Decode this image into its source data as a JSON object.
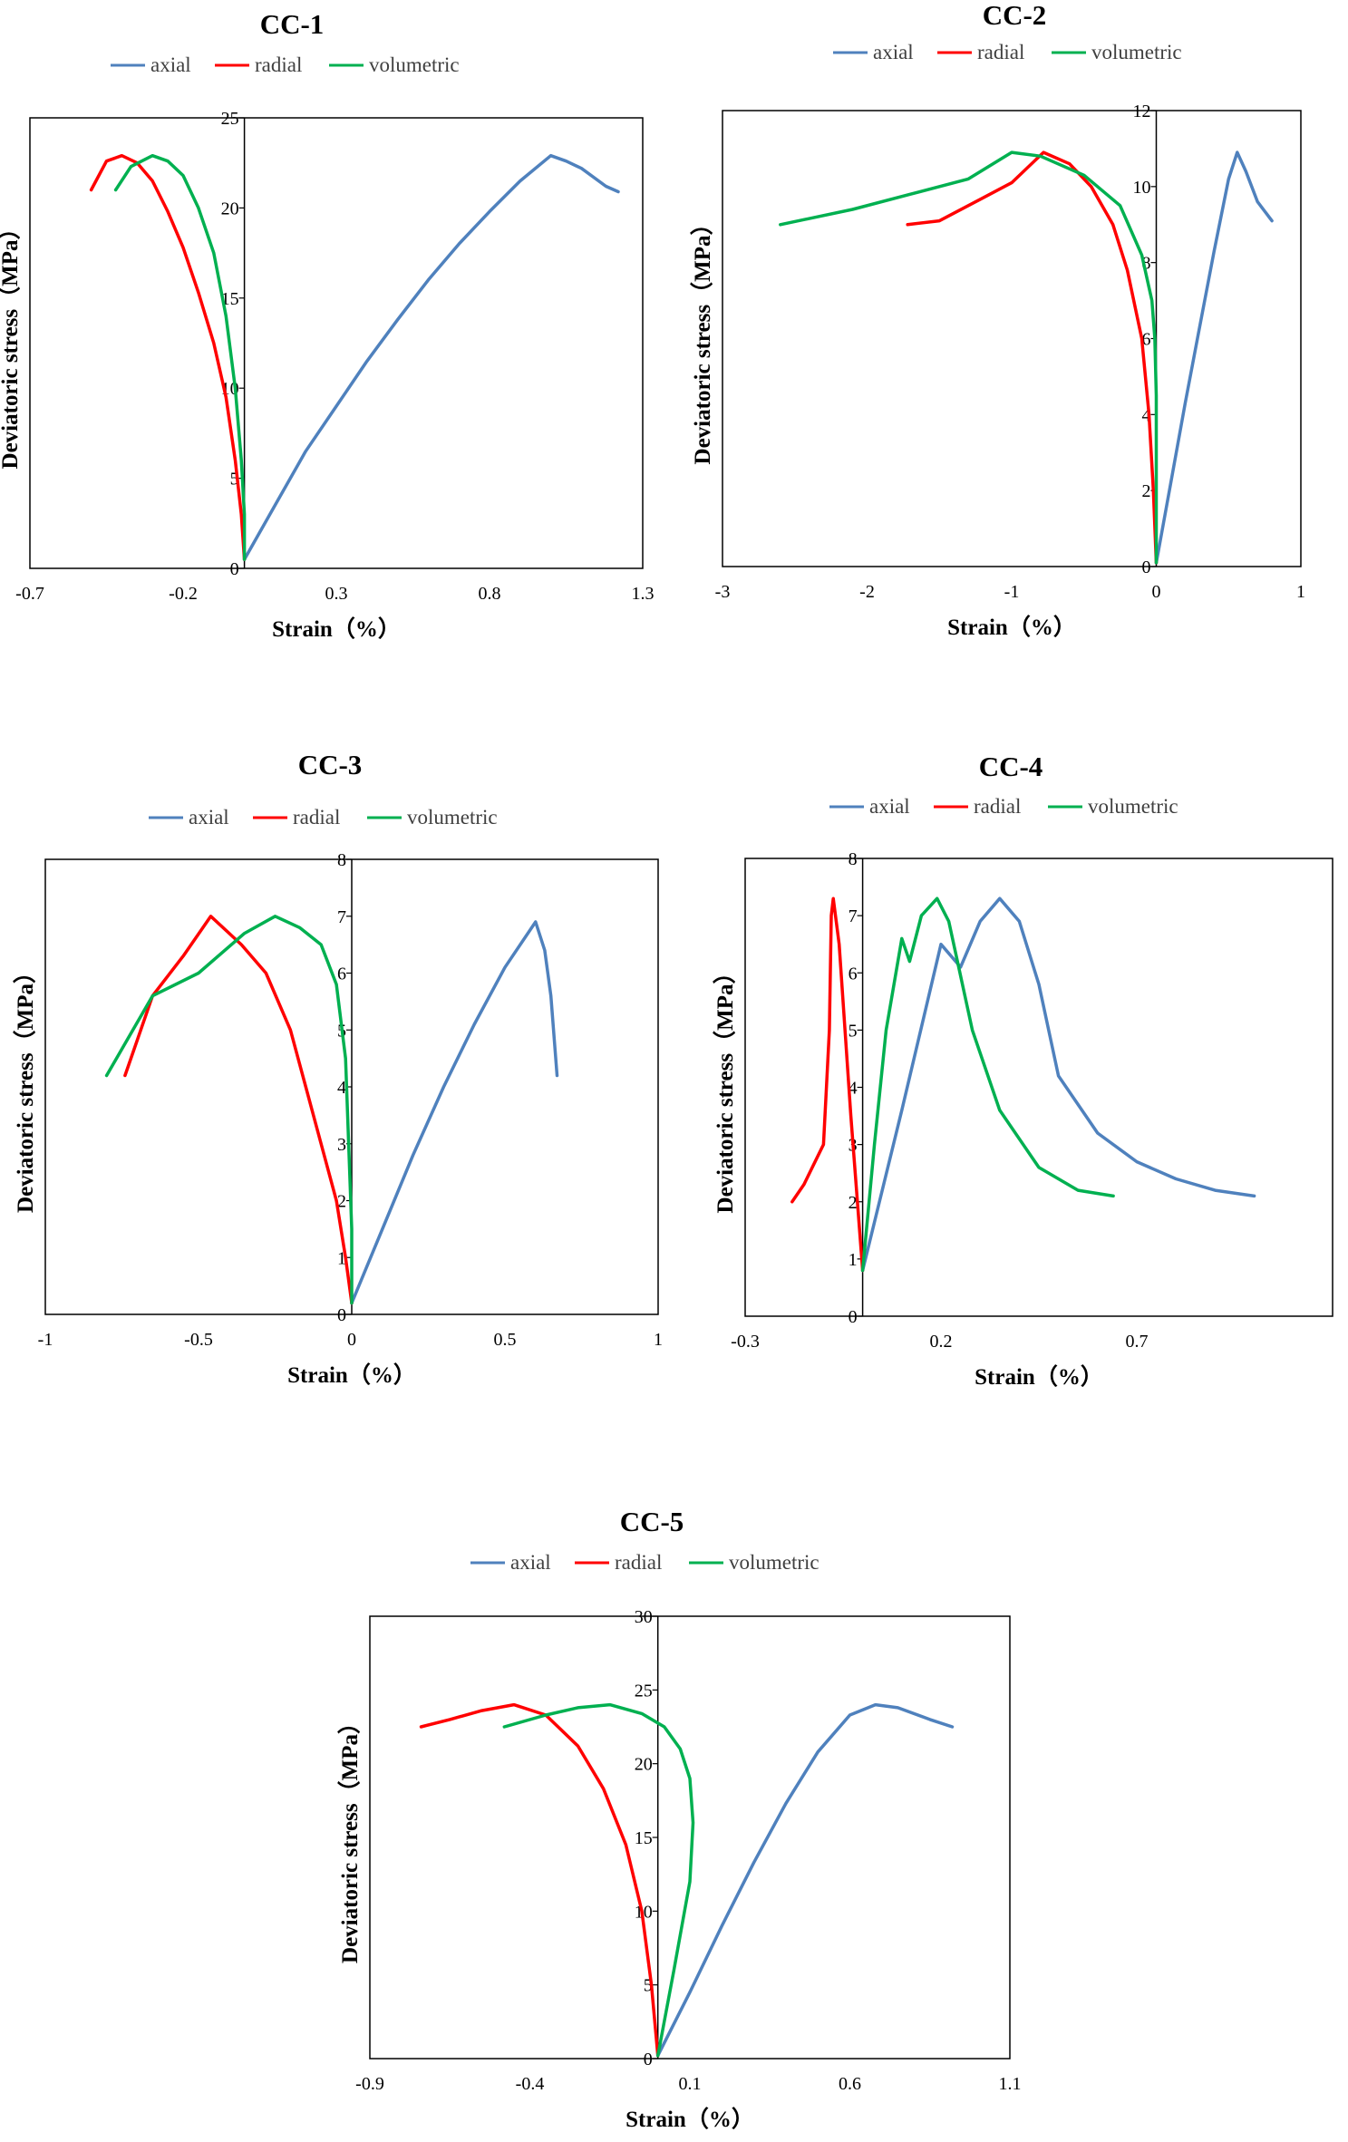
{
  "colors": {
    "axial": "#4f81bd",
    "radial": "#ff0000",
    "volumetric": "#00b050"
  },
  "chart_data": [
    {
      "type": "line",
      "title": "CC-1",
      "xlabel": "Strain（%）",
      "ylabel": "Deviatoric stress（MPa）",
      "xlim": [
        -0.7,
        1.3
      ],
      "ylim": [
        0,
        25
      ],
      "xticks": [
        "-0.7",
        "-0.2",
        "0.3",
        "0.8",
        "1.3"
      ],
      "xtick_values": [
        -0.7,
        -0.2,
        0.3,
        0.8,
        1.3
      ],
      "yticks": [
        "0",
        "5",
        "10",
        "15",
        "20",
        "25"
      ],
      "ytick_values": [
        0,
        5,
        10,
        15,
        20,
        25
      ],
      "legend": "top",
      "grid": false,
      "series": [
        {
          "name": "axial",
          "color_key": "axial",
          "x": [
            0.0,
            0.1,
            0.2,
            0.3,
            0.4,
            0.5,
            0.6,
            0.7,
            0.8,
            0.9,
            1.0,
            1.05,
            1.1,
            1.18,
            1.22
          ],
          "y": [
            0.5,
            3.5,
            6.5,
            9,
            11.5,
            13.8,
            16,
            18,
            19.8,
            21.5,
            22.9,
            22.6,
            22.2,
            21.2,
            20.9
          ]
        },
        {
          "name": "radial",
          "color_key": "radial",
          "x": [
            0.0,
            -0.01,
            -0.03,
            -0.06,
            -0.1,
            -0.15,
            -0.2,
            -0.25,
            -0.3,
            -0.35,
            -0.4,
            -0.45,
            -0.5
          ],
          "y": [
            0.5,
            3,
            6,
            9.5,
            12.5,
            15.3,
            17.8,
            19.8,
            21.5,
            22.5,
            22.9,
            22.6,
            21
          ]
        },
        {
          "name": "volumetric",
          "color_key": "volumetric",
          "x": [
            0.0,
            0.0,
            -0.01,
            -0.03,
            -0.06,
            -0.1,
            -0.15,
            -0.2,
            -0.25,
            -0.3,
            -0.37,
            -0.42
          ],
          "y": [
            0.5,
            3,
            6,
            10,
            14,
            17.5,
            20,
            21.8,
            22.6,
            22.9,
            22.3,
            21
          ]
        }
      ]
    },
    {
      "type": "line",
      "title": "CC-2",
      "xlabel": "Strain（%）",
      "ylabel": "Deviatoric stress（MPa）",
      "xlim": [
        -3,
        1
      ],
      "ylim": [
        0,
        12
      ],
      "xticks": [
        "-3",
        "-2",
        "-1",
        "0",
        "1"
      ],
      "xtick_values": [
        -3,
        -2,
        -1,
        0,
        1
      ],
      "yticks": [
        "0",
        "2",
        "4",
        "6",
        "8",
        "10",
        "12"
      ],
      "ytick_values": [
        0,
        2,
        4,
        6,
        8,
        10,
        12
      ],
      "legend": "top",
      "grid": false,
      "series": [
        {
          "name": "axial",
          "color_key": "axial",
          "x": [
            0.0,
            0.1,
            0.2,
            0.3,
            0.4,
            0.5,
            0.56,
            0.62,
            0.7,
            0.8
          ],
          "y": [
            0.1,
            2.2,
            4.3,
            6.3,
            8.3,
            10.2,
            10.9,
            10.4,
            9.6,
            9.1
          ]
        },
        {
          "name": "radial",
          "color_key": "radial",
          "x": [
            0.0,
            -0.02,
            -0.05,
            -0.1,
            -0.2,
            -0.3,
            -0.45,
            -0.6,
            -0.78,
            -1.0,
            -1.2,
            -1.5,
            -1.72
          ],
          "y": [
            0.1,
            2,
            4,
            6,
            7.8,
            9,
            10,
            10.6,
            10.9,
            10.1,
            9.7,
            9.1,
            9.0
          ]
        },
        {
          "name": "volumetric",
          "color_key": "volumetric",
          "x": [
            0.0,
            0.0,
            0.0,
            -0.01,
            -0.03,
            -0.1,
            -0.25,
            -0.5,
            -0.8,
            -1.0,
            -1.3,
            -1.7,
            -2.1,
            -2.6
          ],
          "y": [
            0.1,
            2,
            4.5,
            6,
            7,
            8.2,
            9.5,
            10.3,
            10.8,
            10.9,
            10.2,
            9.8,
            9.4,
            9.0
          ]
        }
      ]
    },
    {
      "type": "line",
      "title": "CC-3",
      "xlabel": "Strain（%）",
      "ylabel": "Deviatoric stress（MPa）",
      "xlim": [
        -1,
        1
      ],
      "ylim": [
        0,
        8
      ],
      "xticks": [
        "-1",
        "-0.5",
        "0",
        "0.5",
        "1"
      ],
      "xtick_values": [
        -1,
        -0.5,
        0,
        0.5,
        1
      ],
      "yticks": [
        "0",
        "1",
        "2",
        "3",
        "4",
        "5",
        "6",
        "7",
        "8"
      ],
      "ytick_values": [
        0,
        1,
        2,
        3,
        4,
        5,
        6,
        7,
        8
      ],
      "legend": "top",
      "grid": false,
      "series": [
        {
          "name": "axial",
          "color_key": "axial",
          "x": [
            0.0,
            0.1,
            0.2,
            0.3,
            0.4,
            0.5,
            0.6,
            0.63,
            0.65,
            0.67
          ],
          "y": [
            0.2,
            1.5,
            2.8,
            4,
            5.1,
            6.1,
            6.9,
            6.4,
            5.6,
            4.2
          ]
        },
        {
          "name": "radial",
          "color_key": "radial",
          "x": [
            0.0,
            -0.02,
            -0.05,
            -0.1,
            -0.15,
            -0.2,
            -0.28,
            -0.36,
            -0.46,
            -0.55,
            -0.65,
            -0.74
          ],
          "y": [
            0.2,
            1,
            2,
            3,
            4,
            5,
            6,
            6.5,
            7.0,
            6.3,
            5.6,
            4.2
          ]
        },
        {
          "name": "volumetric",
          "color_key": "volumetric",
          "x": [
            0.0,
            0.0,
            -0.01,
            -0.02,
            -0.05,
            -0.1,
            -0.17,
            -0.25,
            -0.35,
            -0.5,
            -0.65,
            -0.8
          ],
          "y": [
            0.2,
            1.5,
            3,
            4.5,
            5.8,
            6.5,
            6.8,
            7.0,
            6.7,
            6.0,
            5.6,
            4.2
          ]
        }
      ]
    },
    {
      "type": "line",
      "title": "CC-4",
      "xlabel": "Strain（%）",
      "ylabel": "Deviatoric stress（MPa）",
      "xlim": [
        -0.3,
        1.2
      ],
      "ylim": [
        0,
        8
      ],
      "xticks": [
        "-0.3",
        "0.2",
        "0.7"
      ],
      "xtick_values": [
        -0.3,
        0.2,
        0.7
      ],
      "yticks": [
        "0",
        "1",
        "2",
        "3",
        "4",
        "5",
        "6",
        "7",
        "8"
      ],
      "ytick_values": [
        0,
        1,
        2,
        3,
        4,
        5,
        6,
        7,
        8
      ],
      "legend": "top",
      "grid": false,
      "series": [
        {
          "name": "axial",
          "color_key": "axial",
          "x": [
            0.0,
            0.1,
            0.2,
            0.25,
            0.3,
            0.35,
            0.4,
            0.45,
            0.5,
            0.6,
            0.7,
            0.8,
            0.9,
            1.0
          ],
          "y": [
            0.8,
            3.6,
            6.5,
            6.1,
            6.9,
            7.3,
            6.9,
            5.8,
            4.2,
            3.2,
            2.7,
            2.4,
            2.2,
            2.1
          ]
        },
        {
          "name": "radial",
          "color_key": "radial",
          "x": [
            0.0,
            -0.03,
            -0.06,
            -0.075,
            -0.08,
            -0.085,
            -0.1,
            -0.15,
            -0.18
          ],
          "y": [
            0.8,
            3.5,
            6.5,
            7.3,
            7.0,
            5.0,
            3.0,
            2.3,
            2.0
          ]
        },
        {
          "name": "volumetric",
          "color_key": "volumetric",
          "x": [
            0.0,
            0.03,
            0.06,
            0.1,
            0.12,
            0.15,
            0.19,
            0.22,
            0.28,
            0.35,
            0.45,
            0.55,
            0.64
          ],
          "y": [
            0.8,
            3,
            5,
            6.6,
            6.2,
            7.0,
            7.3,
            6.9,
            5.0,
            3.6,
            2.6,
            2.2,
            2.1
          ]
        }
      ]
    },
    {
      "type": "line",
      "title": "CC-5",
      "xlabel": "Strain（%）",
      "ylabel": "Deviatoric stress（MPa）",
      "xlim": [
        -0.9,
        1.1
      ],
      "ylim": [
        0,
        30
      ],
      "xticks": [
        "-0.9",
        "-0.4",
        "0.1",
        "0.6",
        "1.1"
      ],
      "xtick_values": [
        -0.9,
        -0.4,
        0.1,
        0.6,
        1.1
      ],
      "yticks": [
        "0",
        "5",
        "10",
        "15",
        "20",
        "25",
        "30"
      ],
      "ytick_values": [
        0,
        5,
        10,
        15,
        20,
        25,
        30
      ],
      "legend": "top",
      "grid": false,
      "series": [
        {
          "name": "axial",
          "color_key": "axial",
          "x": [
            0.0,
            0.1,
            0.2,
            0.3,
            0.4,
            0.5,
            0.6,
            0.68,
            0.75,
            0.85,
            0.92
          ],
          "y": [
            0.2,
            4.5,
            9,
            13.3,
            17.3,
            20.8,
            23.3,
            24.0,
            23.8,
            23.0,
            22.5
          ]
        },
        {
          "name": "radial",
          "color_key": "radial",
          "x": [
            0.0,
            -0.02,
            -0.05,
            -0.1,
            -0.17,
            -0.25,
            -0.35,
            -0.45,
            -0.55,
            -0.65,
            -0.74
          ],
          "y": [
            0.2,
            5,
            10,
            14.5,
            18.3,
            21.2,
            23.3,
            24.0,
            23.6,
            23.0,
            22.5
          ]
        },
        {
          "name": "volumetric",
          "color_key": "volumetric",
          "x": [
            0.0,
            0.05,
            0.1,
            0.11,
            0.1,
            0.07,
            0.02,
            -0.05,
            -0.15,
            -0.25,
            -0.35,
            -0.48
          ],
          "y": [
            0.2,
            6,
            12,
            16,
            19,
            21,
            22.5,
            23.4,
            24.0,
            23.8,
            23.3,
            22.5
          ]
        }
      ]
    }
  ]
}
